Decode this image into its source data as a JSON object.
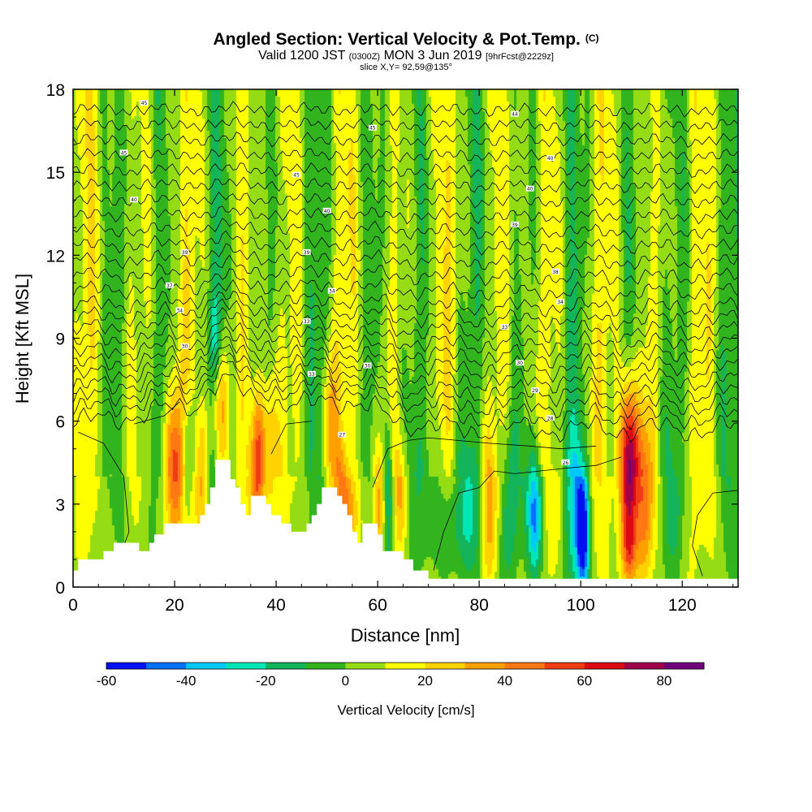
{
  "header": {
    "title": "Angled Section: Vertical Velocity & Pot.Temp.",
    "title_unit": "(C)",
    "valid_prefix": "Valid 1200 JST",
    "valid_zulu": "(0300Z)",
    "valid_date": "MON 3 Jun 2019",
    "forecast": "[9hrFcst@2229z]",
    "slice": "slice X,Y= 92,59@135°"
  },
  "chart_data": {
    "type": "heatmap",
    "xlabel": "Distance [nm]",
    "ylabel": "Height [Kft MSL]",
    "xlim": [
      0,
      131
    ],
    "ylim": [
      0,
      18
    ],
    "x_ticks": [
      "0",
      "20",
      "40",
      "60",
      "80",
      "100",
      "120"
    ],
    "y_ticks": [
      "0",
      "3",
      "6",
      "9",
      "12",
      "15",
      "18"
    ],
    "colorbar": {
      "label": "Vertical Velocity [cm/s]",
      "tick_labels": [
        "-60",
        "-40",
        "-20",
        "0",
        "20",
        "40",
        "60",
        "80"
      ],
      "levels": [
        -60,
        -50,
        -40,
        -30,
        -20,
        -10,
        0,
        10,
        20,
        30,
        40,
        50,
        60,
        70,
        80,
        90
      ],
      "colors": [
        "#0010f0",
        "#0070ff",
        "#00c8ff",
        "#00e6b4",
        "#14b45a",
        "#32b41e",
        "#96dc14",
        "#ffff00",
        "#ffd200",
        "#ffa000",
        "#ff7814",
        "#f03c14",
        "#dc0a14",
        "#a0004b",
        "#6e0078"
      ]
    },
    "terrain_kft": [
      [
        0,
        0.6
      ],
      [
        1,
        0.6
      ],
      [
        1,
        1.0
      ],
      [
        6,
        1.0
      ],
      [
        6,
        1.3
      ],
      [
        8,
        1.3
      ],
      [
        8,
        1.6
      ],
      [
        13,
        1.6
      ],
      [
        13,
        1.3
      ],
      [
        15,
        1.3
      ],
      [
        15,
        1.6
      ],
      [
        16,
        1.6
      ],
      [
        16,
        1.9
      ],
      [
        18,
        1.9
      ],
      [
        18,
        2.3
      ],
      [
        25,
        2.3
      ],
      [
        25,
        2.6
      ],
      [
        26,
        2.6
      ],
      [
        26,
        3.0
      ],
      [
        27,
        3.0
      ],
      [
        27,
        3.6
      ],
      [
        28,
        3.6
      ],
      [
        28,
        4.6
      ],
      [
        31,
        4.6
      ],
      [
        31,
        3.9
      ],
      [
        32,
        3.9
      ],
      [
        32,
        3.6
      ],
      [
        33,
        3.6
      ],
      [
        33,
        3.0
      ],
      [
        34,
        3.0
      ],
      [
        34,
        2.6
      ],
      [
        35,
        2.6
      ],
      [
        35,
        3.3
      ],
      [
        38,
        3.3
      ],
      [
        38,
        3.0
      ],
      [
        39,
        3.0
      ],
      [
        39,
        2.6
      ],
      [
        41,
        2.6
      ],
      [
        41,
        2.3
      ],
      [
        43,
        2.3
      ],
      [
        43,
        2.0
      ],
      [
        46,
        2.0
      ],
      [
        46,
        2.3
      ],
      [
        47,
        2.3
      ],
      [
        47,
        2.6
      ],
      [
        48,
        2.6
      ],
      [
        48,
        3.0
      ],
      [
        49,
        3.0
      ],
      [
        49,
        3.6
      ],
      [
        52,
        3.6
      ],
      [
        52,
        3.3
      ],
      [
        53,
        3.3
      ],
      [
        53,
        3.0
      ],
      [
        54,
        3.0
      ],
      [
        54,
        2.6
      ],
      [
        55,
        2.6
      ],
      [
        55,
        2.0
      ],
      [
        56,
        2.0
      ],
      [
        56,
        1.6
      ],
      [
        57,
        1.6
      ],
      [
        57,
        2.3
      ],
      [
        60,
        2.3
      ],
      [
        60,
        1.9
      ],
      [
        61,
        1.9
      ],
      [
        61,
        1.3
      ],
      [
        65,
        1.3
      ],
      [
        65,
        1.0
      ],
      [
        67,
        1.0
      ],
      [
        67,
        0.6
      ],
      [
        70,
        0.6
      ],
      [
        70,
        0.3
      ],
      [
        131,
        0.3
      ]
    ],
    "w_sources": [
      {
        "x": 20,
        "z": 4.3,
        "w": 48,
        "sx": 1.3,
        "sz": 1.9
      },
      {
        "x": 22.5,
        "z": 4.8,
        "w": -30,
        "sx": 0.8,
        "sz": 1.6
      },
      {
        "x": 25.5,
        "z": 4.2,
        "w": 30,
        "sx": 0.9,
        "sz": 1.8
      },
      {
        "x": 29,
        "z": 6.6,
        "w": 32,
        "sx": 1.1,
        "sz": 1.7
      },
      {
        "x": 28,
        "z": 9.0,
        "w": -22,
        "sx": 0.9,
        "sz": 1.2
      },
      {
        "x": 36.5,
        "z": 4.6,
        "w": 58,
        "sx": 1.1,
        "sz": 1.8
      },
      {
        "x": 39,
        "z": 5.0,
        "w": 22,
        "sx": 0.8,
        "sz": 2.0
      },
      {
        "x": 50.5,
        "z": 5.8,
        "w": 28,
        "sx": 1.0,
        "sz": 1.8
      },
      {
        "x": 53,
        "z": 3.3,
        "w": 26,
        "sx": 1.0,
        "sz": 1.3
      },
      {
        "x": 55,
        "z": 2.6,
        "w": 20,
        "sx": 1.1,
        "sz": 1.1
      },
      {
        "x": 60.5,
        "z": 3.0,
        "w": 40,
        "sx": 0.9,
        "sz": 1.6
      },
      {
        "x": 62,
        "z": 3.4,
        "w": -38,
        "sx": 0.8,
        "sz": 1.8
      },
      {
        "x": 64.5,
        "z": 3.3,
        "w": 24,
        "sx": 1.0,
        "sz": 1.6
      },
      {
        "x": 70,
        "z": 3.0,
        "w": -10,
        "sx": 2.4,
        "sz": 2.2
      },
      {
        "x": 76,
        "z": 2.4,
        "w": -22,
        "sx": 3.0,
        "sz": 1.5
      },
      {
        "x": 82,
        "z": 2.6,
        "w": 32,
        "sx": 1.1,
        "sz": 2.0
      },
      {
        "x": 86,
        "z": 2.6,
        "w": -26,
        "sx": 1.3,
        "sz": 2.2
      },
      {
        "x": 91,
        "z": 2.6,
        "w": -52,
        "sx": 1.1,
        "sz": 1.6
      },
      {
        "x": 95,
        "z": 2.3,
        "w": 14,
        "sx": 1.0,
        "sz": 1.8
      },
      {
        "x": 99,
        "z": 2.6,
        "w": -32,
        "sx": 1.3,
        "sz": 2.2
      },
      {
        "x": 100.5,
        "z": 1.9,
        "w": -58,
        "sx": 0.8,
        "sz": 1.4
      },
      {
        "x": 109.5,
        "z": 4.3,
        "w": 82,
        "sx": 1.3,
        "sz": 2.1
      },
      {
        "x": 109.5,
        "z": 1.3,
        "w": 25,
        "sx": 1.0,
        "sz": 0.8
      },
      {
        "x": 112.5,
        "z": 2.9,
        "w": 40,
        "sx": 1.2,
        "sz": 2.3
      },
      {
        "x": 118,
        "z": 2.4,
        "w": -12,
        "sx": 1.5,
        "sz": 1.5
      }
    ],
    "theta_labels": [
      {
        "x": 14,
        "z": 17.5,
        "t": "45"
      },
      {
        "x": 10,
        "z": 15.7,
        "t": "45"
      },
      {
        "x": 12,
        "z": 14.0,
        "t": "40"
      },
      {
        "x": 22,
        "z": 12.1,
        "t": "39"
      },
      {
        "x": 19,
        "z": 10.9,
        "t": "37"
      },
      {
        "x": 21,
        "z": 10.0,
        "t": "34"
      },
      {
        "x": 22,
        "z": 8.7,
        "t": "30"
      },
      {
        "x": 59,
        "z": 16.6,
        "t": "45"
      },
      {
        "x": 44,
        "z": 14.9,
        "t": "45"
      },
      {
        "x": 50,
        "z": 13.6,
        "t": "40"
      },
      {
        "x": 46,
        "z": 12.1,
        "t": "39"
      },
      {
        "x": 51,
        "z": 10.7,
        "t": "34"
      },
      {
        "x": 46,
        "z": 9.6,
        "t": "33"
      },
      {
        "x": 47,
        "z": 7.7,
        "t": "33"
      },
      {
        "x": 58,
        "z": 8.0,
        "t": "30"
      },
      {
        "x": 53,
        "z": 5.5,
        "t": "27"
      },
      {
        "x": 87,
        "z": 17.1,
        "t": "44"
      },
      {
        "x": 94,
        "z": 15.5,
        "t": "40"
      },
      {
        "x": 90,
        "z": 14.4,
        "t": "40"
      },
      {
        "x": 87,
        "z": 13.1,
        "t": "39"
      },
      {
        "x": 95,
        "z": 11.4,
        "t": "38"
      },
      {
        "x": 96,
        "z": 10.3,
        "t": "34"
      },
      {
        "x": 85,
        "z": 9.4,
        "t": "33"
      },
      {
        "x": 88,
        "z": 8.1,
        "t": "30"
      },
      {
        "x": 91,
        "z": 7.1,
        "t": "29"
      },
      {
        "x": 94,
        "z": 6.1,
        "t": "28"
      },
      {
        "x": 97,
        "z": 4.5,
        "t": "26"
      }
    ]
  }
}
